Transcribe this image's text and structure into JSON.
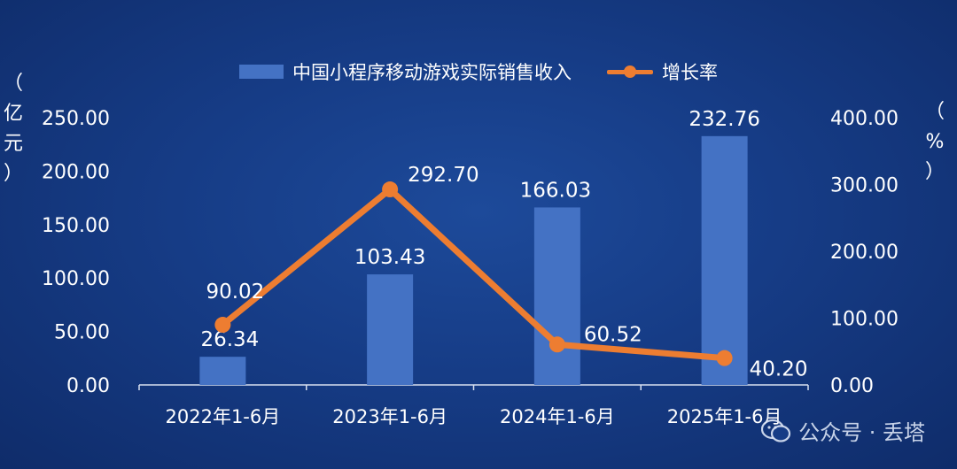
{
  "chart_data": {
    "type": "bar+line",
    "categories": [
      "2022年1-6月",
      "2023年1-6月",
      "2024年1-6月",
      "2025年1-6月"
    ],
    "series": [
      {
        "name": "中国小程序移动游戏实际销售收入",
        "type": "bar",
        "axis": "left",
        "values": [
          26.34,
          103.43,
          166.03,
          232.76
        ],
        "labels": [
          "26.34",
          "103.43",
          "166.03",
          "232.76"
        ],
        "color": "#4472c4"
      },
      {
        "name": "增长率",
        "type": "line",
        "axis": "right",
        "values": [
          90.02,
          292.7,
          60.52,
          40.2
        ],
        "labels": [
          "90.02",
          "292.70",
          "60.52",
          "40.20"
        ],
        "color": "#ed7d31"
      }
    ],
    "left_axis": {
      "unit_chars": [
        "（",
        "亿",
        "元",
        "）"
      ],
      "ylim": [
        0,
        250
      ],
      "ticks": [
        "0.00",
        "50.00",
        "100.00",
        "150.00",
        "200.00",
        "250.00"
      ]
    },
    "right_axis": {
      "unit_chars": [
        "（",
        "%",
        "）"
      ],
      "ylim": [
        0,
        400
      ],
      "ticks": [
        "0.00",
        "100.00",
        "200.00",
        "300.00",
        "400.00"
      ]
    },
    "grid": false,
    "legend_position": "top-center"
  },
  "legend": {
    "bar_label": "中国小程序移动游戏实际销售收入",
    "line_label": "增长率"
  },
  "watermark": {
    "icon": "wechat-icon",
    "text": "公众号 · 丢塔"
  }
}
